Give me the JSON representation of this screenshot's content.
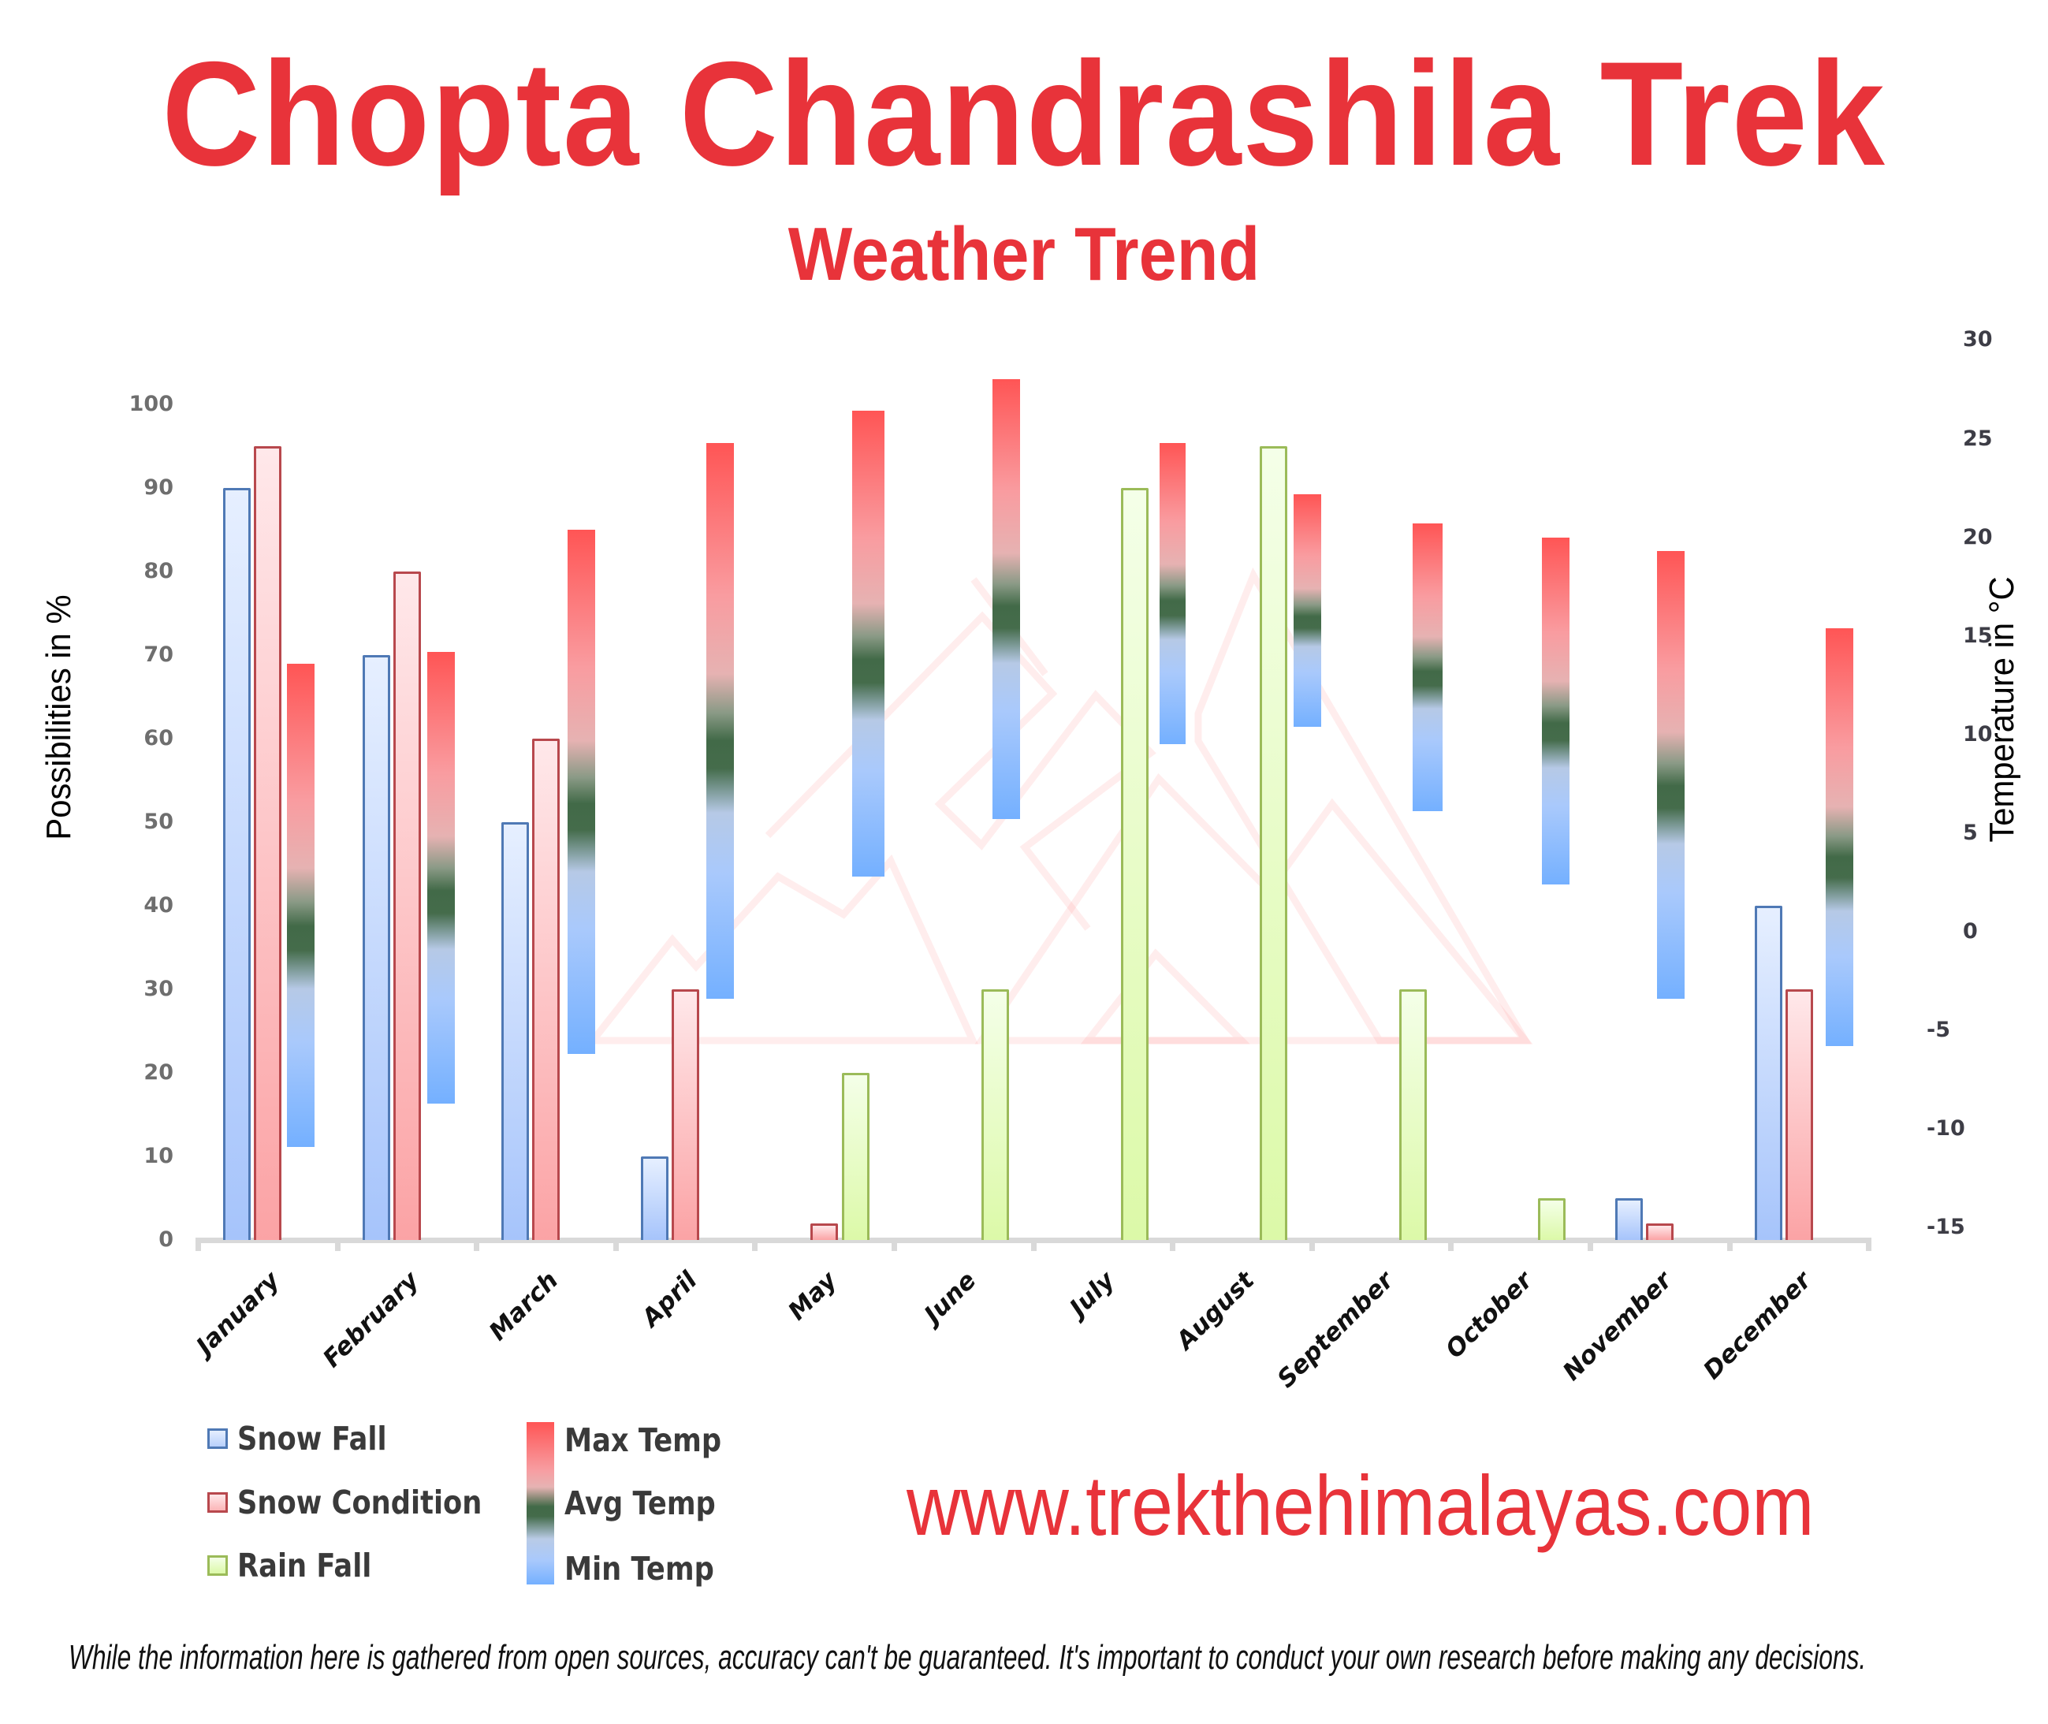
{
  "header": {
    "title": "Chopta Chandrashila Trek",
    "subtitle": "Weather Trend"
  },
  "footer": {
    "website": "www.trekthehimalayas.com",
    "disclaimer": "While the information here is gathered from open sources, accuracy can't be guaranteed. It's important to conduct your own research before making any decisions."
  },
  "colors": {
    "brand_red": "#e8333a",
    "snow_fall": "#4f79b5",
    "snow_condition": "#b8484d",
    "rain_fall": "#9bbb59",
    "max_temp": "#ff5555",
    "avg_temp": "#426a48",
    "min_temp": "#74b0ff"
  },
  "legend": {
    "snow_fall": "Snow Fall",
    "snow_condition": "Snow Condition",
    "rain_fall": "Rain Fall",
    "max_temp": "Max Temp",
    "avg_temp": "Avg Temp",
    "min_temp": "Min Temp"
  },
  "chart_data": {
    "type": "bar",
    "title": "Chopta Chandrashila Trek",
    "subtitle": "Weather Trend",
    "categories": [
      "January",
      "February",
      "March",
      "April",
      "May",
      "June",
      "July",
      "August",
      "September",
      "October",
      "November",
      "December"
    ],
    "ylabel": "Possibilities in %",
    "ylim": [
      0,
      100
    ],
    "yticks": [
      0,
      10,
      20,
      30,
      40,
      50,
      60,
      70,
      80,
      90,
      100
    ],
    "y2label": "Temperature in °C",
    "y2lim": [
      -15,
      30
    ],
    "y2ticks": [
      30,
      25,
      20,
      15,
      10,
      5,
      0,
      -5,
      -10,
      -15
    ],
    "grid": false,
    "legend_position": "bottom-left",
    "series": [
      {
        "name": "Snow Fall",
        "axis": "left",
        "values": [
          90,
          70,
          50,
          10,
          0,
          0,
          0,
          0,
          0,
          0,
          5,
          40
        ]
      },
      {
        "name": "Snow Condition",
        "axis": "left",
        "values": [
          95,
          80,
          60,
          30,
          2,
          0,
          0,
          0,
          0,
          0,
          2,
          30
        ]
      },
      {
        "name": "Rain Fall",
        "axis": "left",
        "values": [
          0,
          0,
          0,
          0,
          20,
          30,
          90,
          95,
          30,
          5,
          0,
          0
        ]
      },
      {
        "name": "Max Temp",
        "axis": "right",
        "values": [
          13.6,
          14.2,
          20.4,
          24.8,
          26.4,
          28.0,
          24.8,
          22.2,
          20.7,
          20.0,
          19.3,
          15.4
        ]
      },
      {
        "name": "Avg Temp",
        "axis": "right",
        "values": [
          0.3,
          2.1,
          6.5,
          9.7,
          13.8,
          16.5,
          16.8,
          16.0,
          13.2,
          10.6,
          7.4,
          3.8
        ]
      },
      {
        "name": "Min Temp",
        "axis": "right",
        "values": [
          -10.9,
          -8.7,
          -6.2,
          -3.4,
          2.8,
          5.7,
          9.5,
          10.4,
          6.1,
          2.4,
          -3.4,
          -5.8
        ]
      }
    ]
  }
}
